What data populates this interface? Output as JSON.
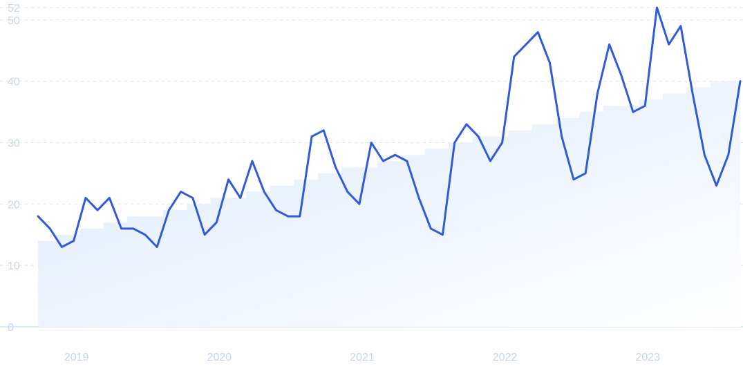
{
  "chart_data": {
    "type": "line",
    "title": "",
    "xlabel": "",
    "ylabel": "",
    "ylim": [
      0,
      52
    ],
    "y_ticks": [
      0,
      10,
      20,
      30,
      40,
      50,
      52
    ],
    "x_tick_labels": [
      "2019",
      "2020",
      "2021",
      "2022",
      "2023"
    ],
    "grid": true,
    "colors": {
      "line": "#2f5bd9",
      "area_top": "#dce9fb",
      "area_bottom": "#f7fafe",
      "tick_text": "#c6d3ee",
      "grid": "#d9e2f2"
    },
    "series": [
      {
        "role": "line",
        "x": [
          "2018-10",
          "2018-11",
          "2018-12",
          "2019-01",
          "2019-02",
          "2019-03",
          "2019-04",
          "2019-05",
          "2019-06",
          "2019-07",
          "2019-08",
          "2019-09",
          "2019-10",
          "2019-11",
          "2019-12",
          "2020-01",
          "2020-02",
          "2020-03",
          "2020-04",
          "2020-05",
          "2020-06",
          "2020-07",
          "2020-08",
          "2020-09",
          "2020-10",
          "2020-11",
          "2020-12",
          "2021-01",
          "2021-02",
          "2021-03",
          "2021-04",
          "2021-05",
          "2021-06",
          "2021-07",
          "2021-08",
          "2021-09",
          "2021-10",
          "2021-11",
          "2021-12",
          "2022-01",
          "2022-02",
          "2022-03",
          "2022-04",
          "2022-05",
          "2022-06",
          "2022-07",
          "2022-08",
          "2022-09",
          "2022-10",
          "2022-11",
          "2022-12",
          "2023-01",
          "2023-02",
          "2023-03",
          "2023-04",
          "2023-05",
          "2023-06",
          "2023-07",
          "2023-08",
          "2023-09"
        ],
        "values": [
          18,
          16,
          13,
          14,
          21,
          19,
          21,
          16,
          16,
          15,
          13,
          19,
          22,
          21,
          15,
          17,
          24,
          21,
          27,
          22,
          19,
          18,
          18,
          31,
          32,
          26,
          22,
          20,
          30,
          27,
          28,
          27,
          21,
          16,
          15,
          30,
          33,
          31,
          27,
          30,
          44,
          46,
          48,
          43,
          31,
          24,
          25,
          38,
          46,
          41,
          35,
          36,
          52,
          46,
          49,
          38,
          28,
          23,
          28,
          40
        ]
      },
      {
        "role": "trend-area",
        "x": [
          "2018-10",
          "2018-11",
          "2018-12",
          "2019-01",
          "2019-02",
          "2019-03",
          "2019-04",
          "2019-05",
          "2019-06",
          "2019-07",
          "2019-08",
          "2019-09",
          "2019-10",
          "2019-11",
          "2019-12",
          "2020-01",
          "2020-02",
          "2020-03",
          "2020-04",
          "2020-05",
          "2020-06",
          "2020-07",
          "2020-08",
          "2020-09",
          "2020-10",
          "2020-11",
          "2020-12",
          "2021-01",
          "2021-02",
          "2021-03",
          "2021-04",
          "2021-05",
          "2021-06",
          "2021-07",
          "2021-08",
          "2021-09",
          "2021-10",
          "2021-11",
          "2021-12",
          "2022-01",
          "2022-02",
          "2022-03",
          "2022-04",
          "2022-05",
          "2022-06",
          "2022-07",
          "2022-08",
          "2022-09",
          "2022-10",
          "2022-11",
          "2022-12",
          "2023-01",
          "2023-02",
          "2023-03",
          "2023-04",
          "2023-05",
          "2023-06",
          "2023-07",
          "2023-08",
          "2023-09"
        ],
        "values": [
          14,
          14,
          15,
          15,
          16,
          16,
          17,
          17,
          18,
          18,
          18,
          19,
          19,
          20,
          20,
          21,
          21,
          21,
          22,
          22,
          23,
          23,
          24,
          24,
          25,
          25,
          26,
          26,
          26,
          27,
          27,
          28,
          28,
          29,
          29,
          30,
          30,
          31,
          31,
          31,
          32,
          32,
          33,
          33,
          34,
          34,
          35,
          35,
          36,
          36,
          36,
          37,
          37,
          38,
          38,
          39,
          39,
          40,
          40,
          40
        ]
      }
    ]
  }
}
